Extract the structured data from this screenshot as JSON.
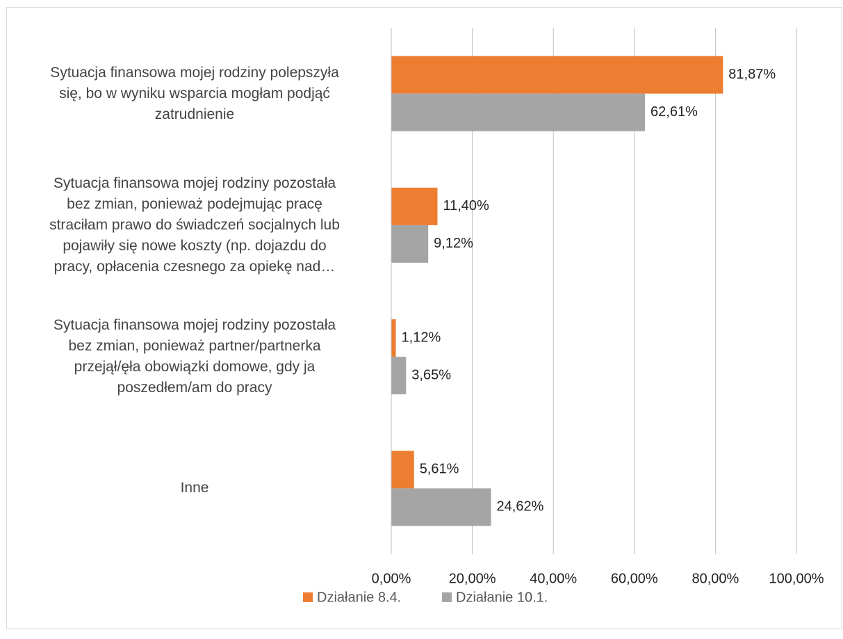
{
  "chart_data": {
    "type": "bar",
    "orientation": "horizontal",
    "categories": [
      "Sytuacja finansowa mojej rodziny polepszyła\nsię, bo w wyniku wsparcia mogłam podjąć\nzatrudnienie",
      "Sytuacja finansowa mojej rodziny pozostała\nbez zmian, ponieważ podejmując pracę\nstraciłam prawo do świadczeń socjalnych lub\npojawiły się nowe koszty (np. dojazdu do\npracy, opłacenia czesnego za opiekę nad…",
      "Sytuacja finansowa mojej rodziny pozostała\nbez zmian, ponieważ partner/partnerka\nprzejął/ęła obowiązki domowe, gdy ja\nposzedłem/am do pracy",
      "Inne"
    ],
    "series": [
      {
        "name": "Działanie 8.4.",
        "color": "#ed7d31",
        "values": [
          81.87,
          11.4,
          1.12,
          5.61
        ],
        "value_labels": [
          "81,87%",
          "11,40%",
          "1,12%",
          "5,61%"
        ]
      },
      {
        "name": "Działanie 10.1.",
        "color": "#a5a5a5",
        "values": [
          62.61,
          9.12,
          3.65,
          24.62
        ],
        "value_labels": [
          "62,61%",
          "9,12%",
          "3,65%",
          "24,62%"
        ]
      }
    ],
    "xlim": [
      0,
      100
    ],
    "xticks": [
      {
        "value": 0,
        "label": "0,00%"
      },
      {
        "value": 20,
        "label": "20,00%"
      },
      {
        "value": 40,
        "label": "40,00%"
      },
      {
        "value": 60,
        "label": "60,00%"
      },
      {
        "value": 80,
        "label": "80,00%"
      },
      {
        "value": 100,
        "label": "100,00%"
      }
    ],
    "grid": true,
    "legend": "bottom"
  }
}
